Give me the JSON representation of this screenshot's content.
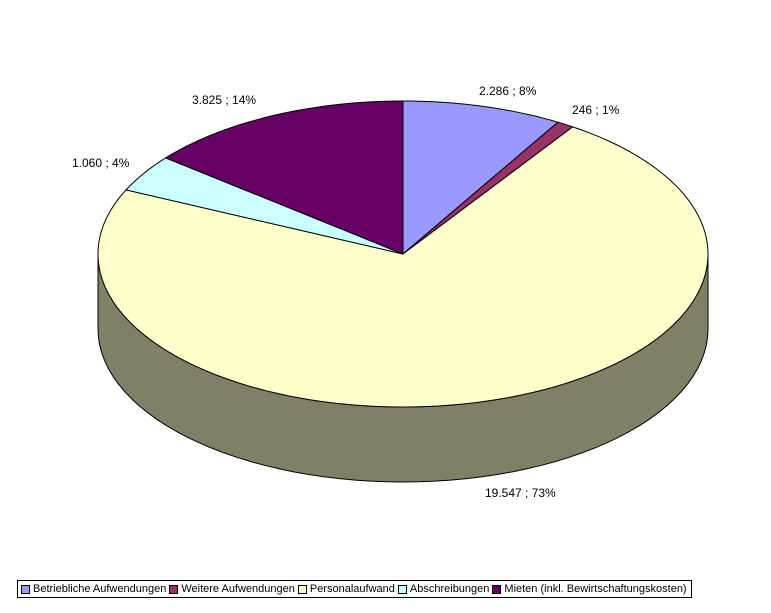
{
  "chart_data": {
    "type": "pie",
    "three_d": true,
    "legend_position": "bottom",
    "categories": [
      "Betriebliche Aufwendungen",
      "Weitere Aufwendungen",
      "Personalaufwand",
      "Abschreibungen",
      "Mieten (inkl. Bewirtschaftungskosten)"
    ],
    "values": [
      2286,
      246,
      19547,
      1060,
      3825
    ],
    "data_labels": [
      "2.286 ; 8%",
      "246 ; 1%",
      "19.547 ; 73%",
      "1.060 ; 4%",
      "3.825 ; 14%"
    ],
    "colors": [
      "#9999ff",
      "#993366",
      "#ffffcc",
      "#ccffff",
      "#660066"
    ],
    "side_colors": [
      "#666699",
      "#663344",
      "#808066",
      "#669999",
      "#440044"
    ]
  }
}
